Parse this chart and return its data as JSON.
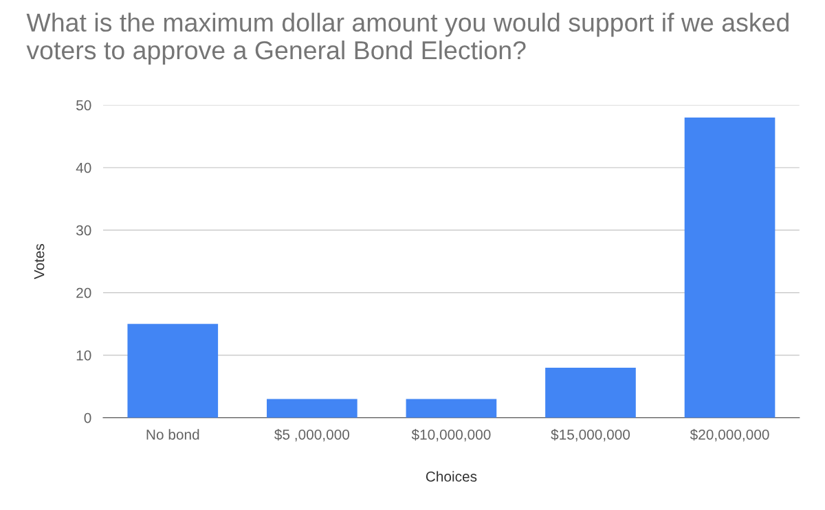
{
  "chart_data": {
    "type": "bar",
    "title": "What is the maximum dollar amount you would support if we asked voters to approve a General Bond Election?",
    "categories": [
      "No bond",
      "$5 ,000,000",
      "$10,000,000",
      "$15,000,000",
      "$20,000,000"
    ],
    "values": [
      15,
      3,
      3,
      8,
      48
    ],
    "color": "#4285f4",
    "xlabel": "Choices",
    "ylabel": "Votes",
    "ylim": [
      0,
      50
    ],
    "yticks": [
      0,
      10,
      20,
      30,
      40,
      50
    ],
    "grid": "y"
  }
}
